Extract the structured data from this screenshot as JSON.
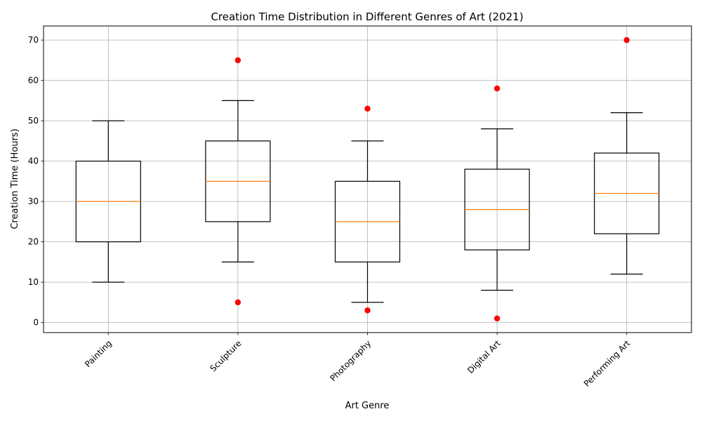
{
  "chart_data": {
    "type": "box",
    "title": "Creation Time Distribution in Different Genres of Art (2021)",
    "xlabel": "Art Genre",
    "ylabel": "Creation Time (Hours)",
    "ylim": [
      -2.5,
      73.5
    ],
    "yticks": [
      0,
      10,
      20,
      30,
      40,
      50,
      60,
      70
    ],
    "grid": true,
    "categories": [
      "Painting",
      "Sculpture",
      "Photography",
      "Digital Art",
      "Performing Art"
    ],
    "boxes": [
      {
        "category": "Painting",
        "whisker_low": 10,
        "q1": 20,
        "median": 30,
        "q3": 40,
        "whisker_high": 50,
        "outliers": []
      },
      {
        "category": "Sculpture",
        "whisker_low": 15,
        "q1": 25,
        "median": 35,
        "q3": 45,
        "whisker_high": 55,
        "outliers": [
          5,
          65
        ]
      },
      {
        "category": "Photography",
        "whisker_low": 5,
        "q1": 15,
        "median": 25,
        "q3": 35,
        "whisker_high": 45,
        "outliers": [
          3,
          53
        ]
      },
      {
        "category": "Digital Art",
        "whisker_low": 8,
        "q1": 18,
        "median": 28,
        "q3": 38,
        "whisker_high": 48,
        "outliers": [
          1,
          58
        ]
      },
      {
        "category": "Performing Art",
        "whisker_low": 12,
        "q1": 22,
        "median": 32,
        "q3": 42,
        "whisker_high": 52,
        "outliers": [
          70
        ]
      }
    ],
    "colors": {
      "box": "#000000",
      "median": "#ff7f0e",
      "outlier": "#ff0000",
      "grid": "#b0b0b0"
    }
  }
}
